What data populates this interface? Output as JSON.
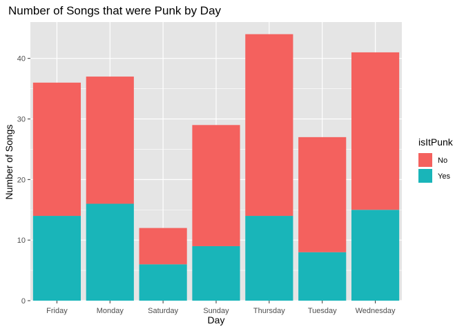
{
  "chart_data": {
    "type": "bar",
    "stacked": true,
    "title": "Number of Songs that were Punk by Day",
    "xlabel": "Day",
    "ylabel": "Number of Songs",
    "categories": [
      "Friday",
      "Monday",
      "Saturday",
      "Sunday",
      "Thursday",
      "Tuesday",
      "Wednesday"
    ],
    "series": [
      {
        "name": "Yes",
        "color": "#19b5b9",
        "values": [
          14,
          16,
          6,
          9,
          14,
          8,
          15
        ]
      },
      {
        "name": "No",
        "color": "#f4615e",
        "values": [
          22,
          21,
          6,
          20,
          30,
          19,
          26
        ]
      }
    ],
    "ylim": [
      0,
      46
    ],
    "y_ticks": [
      0,
      10,
      20,
      30,
      40
    ],
    "grid": true,
    "background_color": "#e5e5e5",
    "grid_color": "#ffffff",
    "legend": {
      "title": "isItPunk",
      "position": "right",
      "items": [
        {
          "label": "No",
          "color": "#f4615e"
        },
        {
          "label": "Yes",
          "color": "#19b5b9"
        }
      ]
    }
  }
}
